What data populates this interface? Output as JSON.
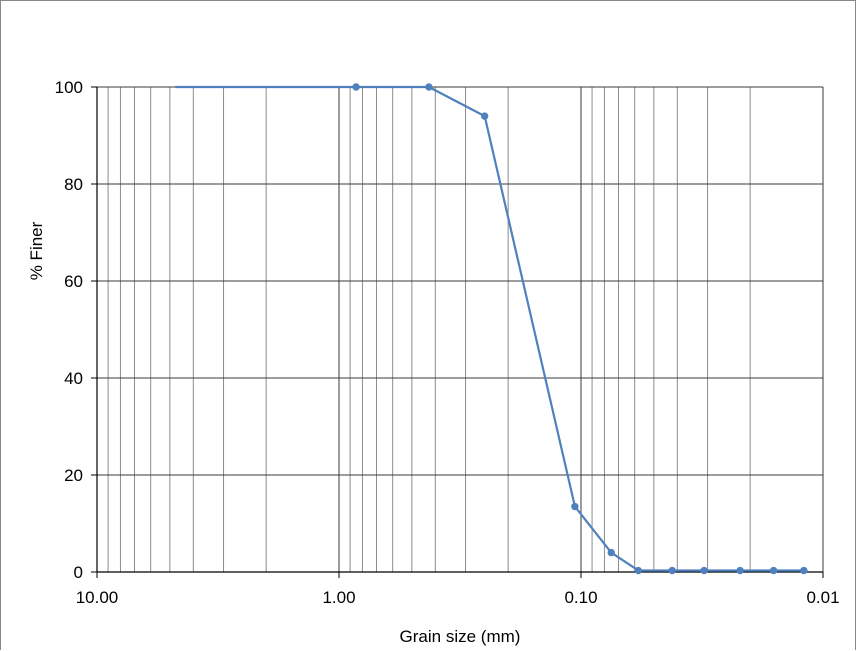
{
  "chart_data": {
    "type": "line",
    "title": "",
    "xlabel": "Grain size (mm)",
    "ylabel": "% Finer",
    "x_scale": "log",
    "x_reversed": true,
    "xlim": [
      10,
      0.01
    ],
    "ylim": [
      0,
      100
    ],
    "x_ticks": [
      10,
      1,
      0.1,
      0.01
    ],
    "x_tick_labels": [
      "10.00",
      "1.00",
      "0.10",
      "0.01"
    ],
    "y_ticks": [
      0,
      20,
      40,
      60,
      80,
      100
    ],
    "y_tick_labels": [
      "0",
      "20",
      "40",
      "60",
      "80",
      "100"
    ],
    "grid": {
      "x_major": true,
      "x_minor": true,
      "y_major": true,
      "y_minor": false
    },
    "legend": "none",
    "series": [
      {
        "color": "#4f81bd",
        "marker": "circle",
        "x": [
          4.75,
          0.85,
          0.425,
          0.25,
          0.106,
          0.075,
          0.058,
          0.042,
          0.031,
          0.022,
          0.016,
          0.012
        ],
        "y": [
          100,
          100,
          100,
          94,
          13.5,
          4,
          0.3,
          0.3,
          0.3,
          0.3,
          0.3,
          0.3
        ],
        "marker_mask": [
          false,
          true,
          true,
          true,
          true,
          true,
          true,
          true,
          true,
          true,
          true,
          true
        ]
      }
    ]
  },
  "style": {
    "grid_color": "#8c8c8c",
    "major_grid_color": "#3a3a3a",
    "axis_color": "#000000"
  }
}
